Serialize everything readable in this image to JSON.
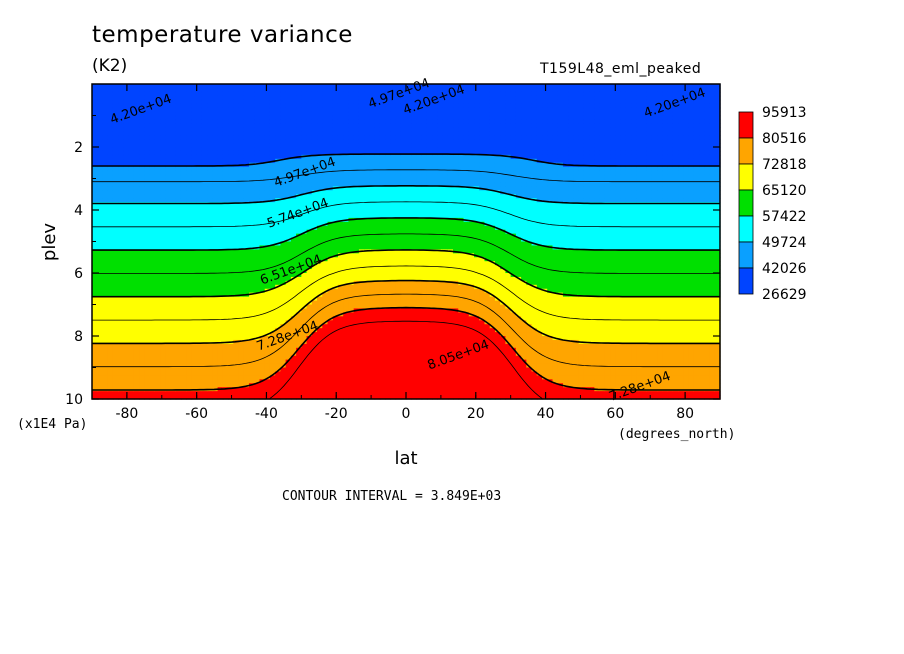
{
  "header": {
    "title": "temperature variance",
    "units": "(K2)",
    "run": "T159L48_eml_peaked"
  },
  "footer": {
    "contour_interval": "CONTOUR INTERVAL = 3.849E+03"
  },
  "chart_data": {
    "type": "contour",
    "xlabel": "lat",
    "xunits": "(degrees_north)",
    "ylabel": "plev",
    "yunits": "(x1E4 Pa)",
    "xlim": [
      -90,
      90
    ],
    "ylim": [
      10,
      0
    ],
    "xticks": [
      -80,
      -60,
      -40,
      -20,
      0,
      20,
      40,
      60,
      80
    ],
    "yticks": [
      2,
      4,
      6,
      8,
      10
    ],
    "colorbar": {
      "labels": [
        "95913",
        "80516",
        "72818",
        "65120",
        "57422",
        "49724",
        "42026",
        "26629"
      ],
      "colors": [
        "#ff0000",
        "#ffa500",
        "#ffff00",
        "#00e000",
        "#00ffff",
        "#0aa0ff",
        "#0044ff"
      ]
    },
    "levels": [
      42026,
      45875,
      49724,
      53573,
      57422,
      61271,
      65120,
      68969,
      72818,
      76667,
      80516,
      84365
    ],
    "contour_labels": [
      {
        "text": "4.97e+04",
        "lat": -2,
        "plev": 0.3
      },
      {
        "text": "4.20e+04",
        "lat": 8,
        "plev": 0.5
      },
      {
        "text": "4.20e+04",
        "lat": -76,
        "plev": 0.8
      },
      {
        "text": "4.20e+04",
        "lat": 77,
        "plev": 0.6
      },
      {
        "text": "4.97e+04",
        "lat": -29,
        "plev": 2.8
      },
      {
        "text": "5.74e+04",
        "lat": -31,
        "plev": 4.1
      },
      {
        "text": "6.51e+04",
        "lat": -33,
        "plev": 5.9
      },
      {
        "text": "7.28e+04",
        "lat": -34,
        "plev": 8.0
      },
      {
        "text": "8.05e+04",
        "lat": 15,
        "plev": 8.6
      },
      {
        "text": "7.28e+04",
        "lat": 67,
        "plev": 9.6
      }
    ],
    "boundaries_note": "filled contours of zonal-mean temperature variance vs latitude and pressure"
  }
}
